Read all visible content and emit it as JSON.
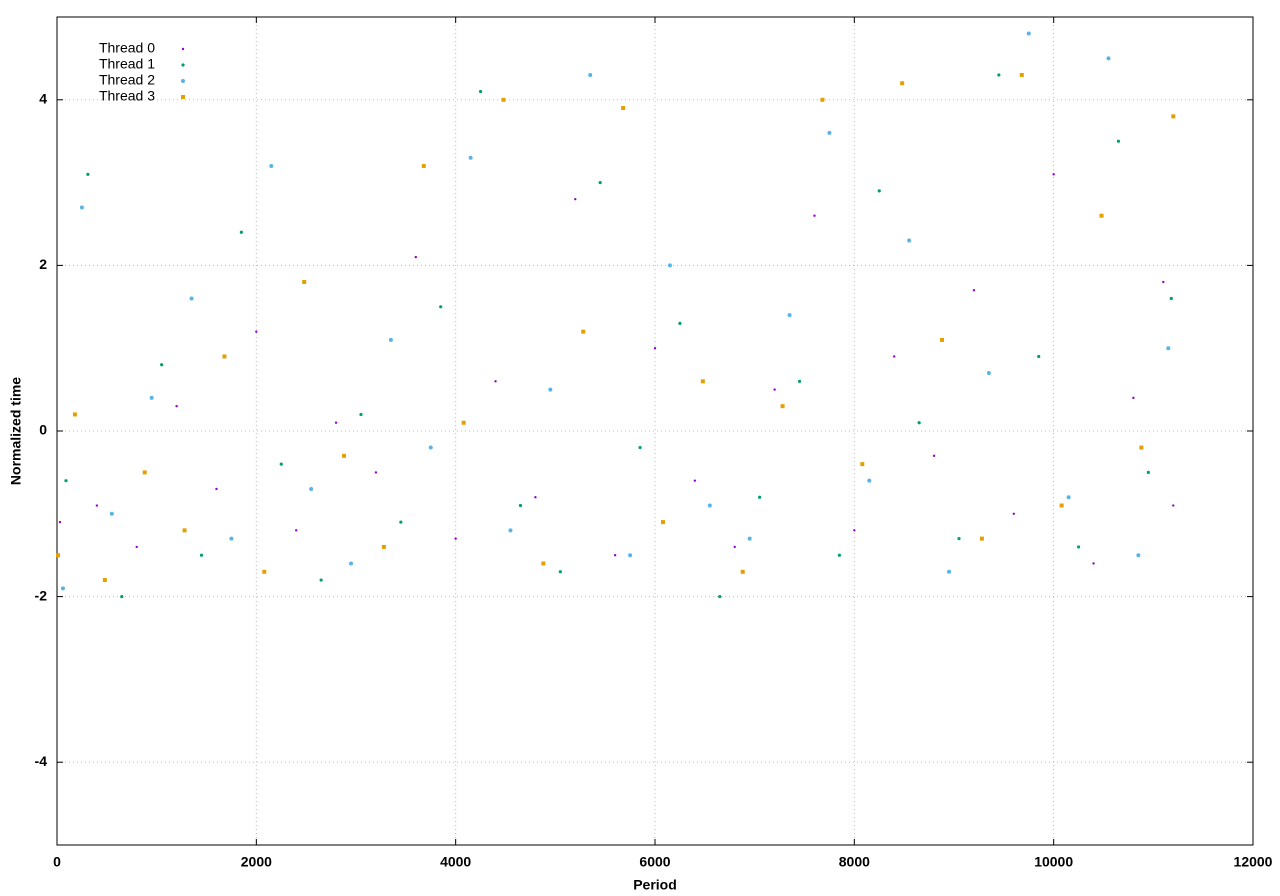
{
  "chart_data": {
    "type": "scatter",
    "xlabel": "Period",
    "ylabel": "Normalized time",
    "xlim": [
      0,
      12000
    ],
    "ylim": [
      -5,
      5
    ],
    "xticks": [
      0,
      2000,
      4000,
      6000,
      8000,
      10000,
      12000
    ],
    "yticks": [
      -4,
      -2,
      0,
      2,
      4
    ],
    "grid": true,
    "legend": "upper-left",
    "series": [
      {
        "name": "Thread 0",
        "color": "#9400d3",
        "x": [
          30,
          400,
          800,
          1200,
          1600,
          2000,
          2400,
          2800,
          3200,
          3600,
          4000,
          4400,
          4800,
          5200,
          5600,
          6000,
          6400,
          6800,
          7200,
          7600,
          8000,
          8400,
          8800,
          9200,
          9600,
          10000,
          10400,
          10800,
          11100,
          11200
        ],
        "values": [
          -1.1,
          -0.9,
          -1.4,
          0.3,
          -0.7,
          1.2,
          -1.2,
          0.1,
          -0.5,
          2.1,
          -1.3,
          0.6,
          -0.8,
          2.8,
          -1.5,
          1.0,
          -0.6,
          -1.4,
          0.5,
          2.6,
          -1.2,
          0.9,
          -0.3,
          1.7,
          -1.0,
          3.1,
          -1.6,
          0.4,
          1.8,
          -0.9
        ]
      },
      {
        "name": "Thread 1",
        "color": "#009e73",
        "x": [
          90,
          310,
          650,
          1050,
          1450,
          1850,
          2250,
          2650,
          3050,
          3450,
          3850,
          4250,
          4650,
          5050,
          5450,
          5850,
          6250,
          6650,
          7050,
          7450,
          7850,
          8250,
          8650,
          9050,
          9450,
          9850,
          10250,
          10650,
          10950,
          11180
        ],
        "values": [
          -0.6,
          3.1,
          -2.0,
          0.8,
          -1.5,
          2.4,
          -0.4,
          -1.8,
          0.2,
          -1.1,
          1.5,
          4.1,
          -0.9,
          -1.7,
          3.0,
          -0.2,
          1.3,
          -2.0,
          -0.8,
          0.6,
          -1.5,
          2.9,
          0.1,
          -1.3,
          4.3,
          0.9,
          -1.4,
          3.5,
          -0.5,
          1.6
        ]
      },
      {
        "name": "Thread 2",
        "color": "#56b4e9",
        "x": [
          60,
          250,
          550,
          950,
          1350,
          1750,
          2150,
          2550,
          2950,
          3350,
          3750,
          4150,
          4550,
          4950,
          5350,
          5750,
          6150,
          6550,
          6950,
          7350,
          7750,
          8150,
          8550,
          8950,
          9350,
          9750,
          10150,
          10550,
          10850,
          11150
        ],
        "values": [
          -1.9,
          2.7,
          -1.0,
          0.4,
          1.6,
          -1.3,
          3.2,
          -0.7,
          -1.6,
          1.1,
          -0.2,
          3.3,
          -1.2,
          0.5,
          4.3,
          -1.5,
          2.0,
          -0.9,
          -1.3,
          1.4,
          3.6,
          -0.6,
          2.3,
          -1.7,
          0.7,
          4.8,
          -0.8,
          4.5,
          -1.5,
          1.0
        ]
      },
      {
        "name": "Thread 3",
        "color": "#e69f00",
        "x": [
          10,
          180,
          480,
          880,
          1280,
          1680,
          2080,
          2480,
          2880,
          3280,
          3680,
          4080,
          4480,
          4880,
          5280,
          5680,
          6080,
          6480,
          6880,
          7280,
          7680,
          8080,
          8480,
          8880,
          9280,
          9680,
          10080,
          10480,
          10880,
          11200
        ],
        "values": [
          -1.5,
          0.2,
          -1.8,
          -0.5,
          -1.2,
          0.9,
          -1.7,
          1.8,
          -0.3,
          -1.4,
          3.2,
          0.1,
          4.0,
          -1.6,
          1.2,
          3.9,
          -1.1,
          0.6,
          -1.7,
          0.3,
          4.0,
          -0.4,
          4.2,
          1.1,
          -1.3,
          4.3,
          -0.9,
          2.6,
          -0.2,
          3.8
        ]
      }
    ]
  }
}
